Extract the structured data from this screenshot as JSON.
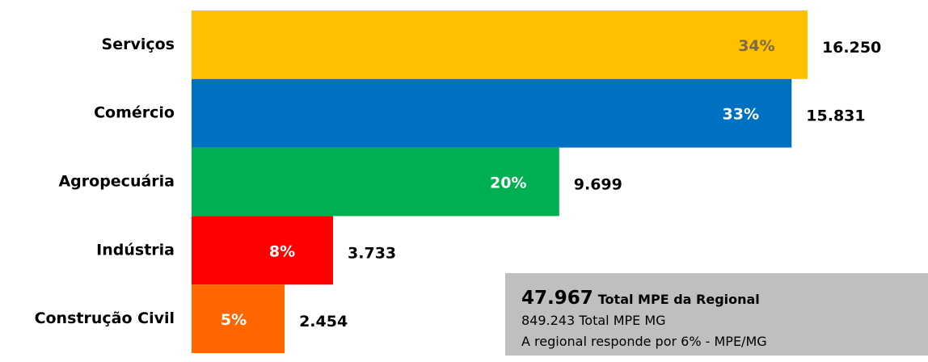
{
  "chart_data": {
    "type": "barh",
    "categories": [
      "Serviços",
      "Comércio",
      "Agropecuária",
      "Indústria",
      "Construção Civil"
    ],
    "values": [
      16250,
      15831,
      9699,
      3733,
      2454
    ],
    "value_labels": [
      "16.250",
      "15.831",
      "9.699",
      "3.733",
      "2.454"
    ],
    "share_labels": [
      "34%",
      "33%",
      "20%",
      "8%",
      "5%"
    ],
    "colors": [
      "#ffc000",
      "#0070c0",
      "#00b050",
      "#ff0000",
      "#ff6600"
    ],
    "share_label_colors": [
      "#7a6a48",
      "#ffffff",
      "#ffffff",
      "#ffffff",
      "#ffffff"
    ],
    "xlim": [
      0,
      18000
    ],
    "annotation": {
      "total": "47.967",
      "total_label": "Total MPE da Regional",
      "line2": "849.243 Total MPE MG",
      "line3": "A regional responde por 6% - MPE/MG"
    }
  }
}
